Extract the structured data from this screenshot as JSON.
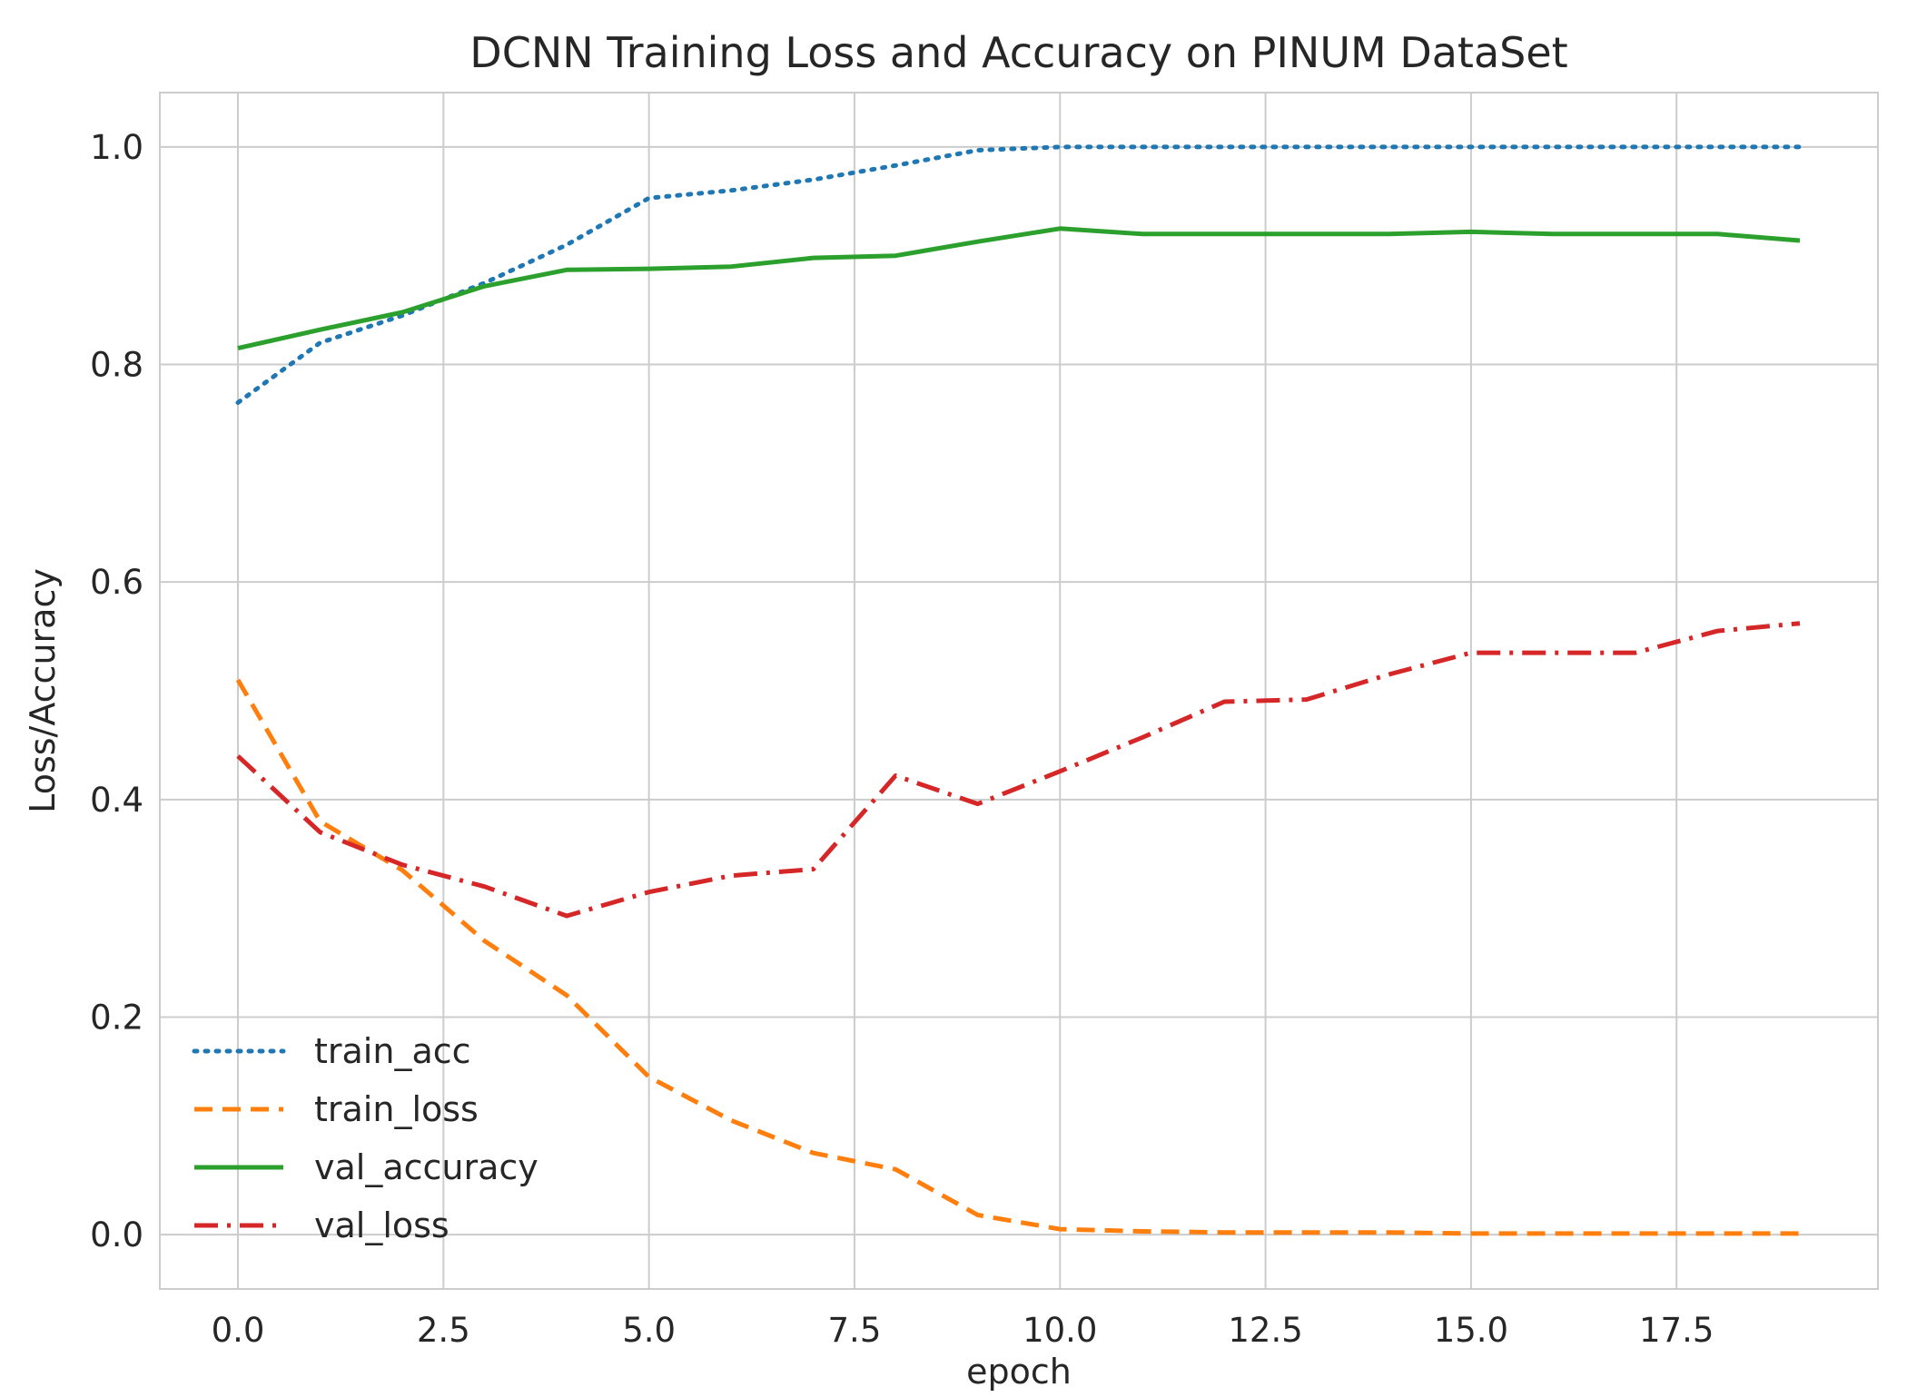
{
  "chart_data": {
    "type": "line",
    "title": "DCNN Training Loss and Accuracy on PINUM DataSet",
    "xlabel": "epoch",
    "ylabel": "Loss/Accuracy",
    "xlim": [
      -0.95,
      19.95
    ],
    "ylim": [
      -0.05,
      1.05
    ],
    "xticks": [
      0.0,
      2.5,
      5.0,
      7.5,
      10.0,
      12.5,
      15.0,
      17.5
    ],
    "xtick_labels": [
      "0.0",
      "2.5",
      "5.0",
      "7.5",
      "10.0",
      "12.5",
      "15.0",
      "17.5"
    ],
    "yticks": [
      0.0,
      0.2,
      0.4,
      0.6,
      0.8,
      1.0
    ],
    "ytick_labels": [
      "0.0",
      "0.2",
      "0.4",
      "0.6",
      "0.8",
      "1.0"
    ],
    "grid": true,
    "legend_position": "lower-left",
    "x": [
      0,
      1,
      2,
      3,
      4,
      5,
      6,
      7,
      8,
      9,
      10,
      11,
      12,
      13,
      14,
      15,
      16,
      17,
      18,
      19
    ],
    "series": [
      {
        "name": "train_acc",
        "color": "#1f77b4",
        "linestyle": "dotted",
        "values": [
          0.765,
          0.82,
          0.845,
          0.875,
          0.91,
          0.953,
          0.96,
          0.97,
          0.983,
          0.997,
          1.0,
          1.0,
          1.0,
          1.0,
          1.0,
          1.0,
          1.0,
          1.0,
          1.0,
          1.0
        ]
      },
      {
        "name": "train_loss",
        "color": "#ff7f0e",
        "linestyle": "dashed",
        "values": [
          0.51,
          0.38,
          0.335,
          0.27,
          0.22,
          0.145,
          0.105,
          0.075,
          0.06,
          0.018,
          0.005,
          0.003,
          0.002,
          0.002,
          0.002,
          0.001,
          0.001,
          0.001,
          0.001,
          0.001
        ]
      },
      {
        "name": "val_accuracy",
        "color": "#2ca02c",
        "linestyle": "solid",
        "values": [
          0.815,
          0.832,
          0.848,
          0.872,
          0.887,
          0.888,
          0.89,
          0.898,
          0.9,
          0.913,
          0.925,
          0.92,
          0.92,
          0.92,
          0.92,
          0.922,
          0.92,
          0.92,
          0.92,
          0.914
        ]
      },
      {
        "name": "val_loss",
        "color": "#d62728",
        "linestyle": "dashdot",
        "values": [
          0.44,
          0.37,
          0.34,
          0.32,
          0.293,
          0.315,
          0.33,
          0.336,
          0.422,
          0.396,
          0.426,
          0.457,
          0.49,
          0.492,
          0.515,
          0.535,
          0.535,
          0.535,
          0.555,
          0.562
        ]
      }
    ]
  }
}
